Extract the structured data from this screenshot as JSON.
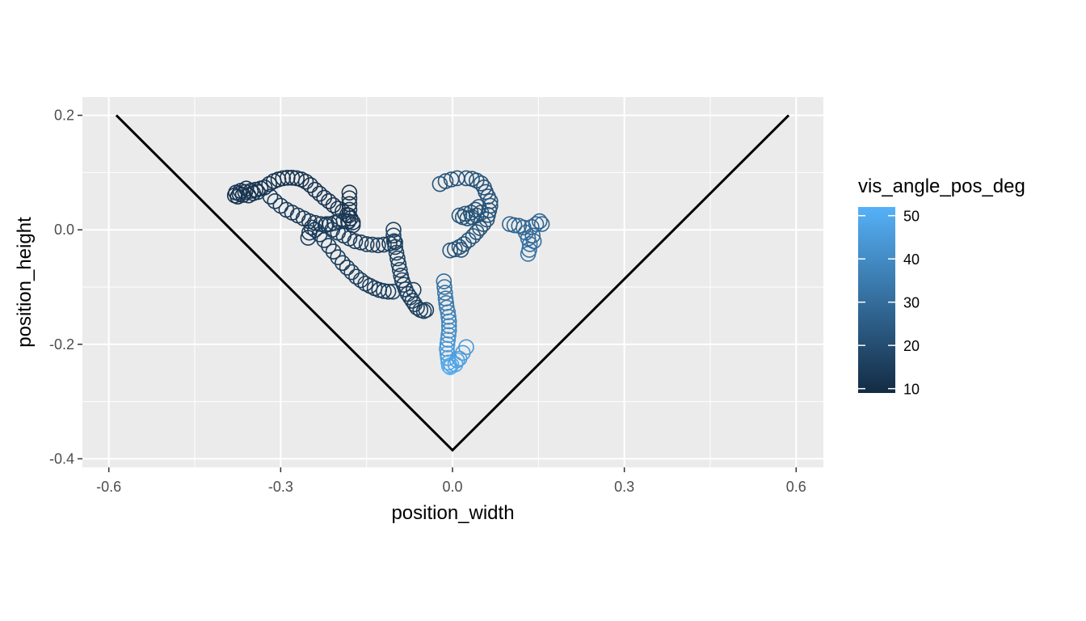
{
  "chart_data": {
    "type": "scatter",
    "title": "",
    "xlabel": "position_width",
    "ylabel": "position_height",
    "xlim": [
      -0.6,
      0.6
    ],
    "ylim": [
      -0.4,
      0.2
    ],
    "x_ticks": [
      -0.6,
      -0.3,
      0.0,
      0.3,
      0.6
    ],
    "x_tick_labels": [
      "-0.6",
      "-0.3",
      "0.0",
      "0.3",
      "0.6"
    ],
    "y_ticks": [
      -0.4,
      -0.2,
      0.0,
      0.2
    ],
    "y_tick_labels": [
      "-0.4",
      "-0.2",
      "0.0",
      "0.2"
    ],
    "grid": true,
    "background": "#ebebeb",
    "legend": {
      "title": "vis_angle_pos_deg",
      "placement": "right",
      "type": "colorbar",
      "min": 9,
      "max": 52,
      "ticks": [
        10,
        20,
        30,
        40,
        50
      ],
      "tick_labels": [
        "10",
        "20",
        "30",
        "40",
        "50"
      ],
      "color_low": "#132b43",
      "color_high": "#56b1f7"
    },
    "boundary_line": {
      "color": "#000000",
      "points": [
        [
          -0.587,
          0.2
        ],
        [
          0.0,
          -0.385
        ],
        [
          0.587,
          0.2
        ]
      ]
    },
    "points": [
      [
        -0.38,
        0.06,
        12
      ],
      [
        -0.378,
        0.065,
        12
      ],
      [
        -0.375,
        0.058,
        12
      ],
      [
        -0.372,
        0.063,
        12
      ],
      [
        -0.37,
        0.068,
        12
      ],
      [
        -0.366,
        0.061,
        12
      ],
      [
        -0.362,
        0.066,
        12
      ],
      [
        -0.36,
        0.072,
        12
      ],
      [
        -0.356,
        0.06,
        12
      ],
      [
        -0.352,
        0.068,
        12
      ],
      [
        -0.348,
        0.064,
        12
      ],
      [
        -0.344,
        0.07,
        12
      ],
      [
        -0.34,
        0.066,
        12
      ],
      [
        -0.335,
        0.072,
        12
      ],
      [
        -0.328,
        0.074,
        12
      ],
      [
        -0.32,
        0.08,
        12
      ],
      [
        -0.312,
        0.085,
        12
      ],
      [
        -0.304,
        0.088,
        12
      ],
      [
        -0.296,
        0.09,
        12
      ],
      [
        -0.288,
        0.091,
        12
      ],
      [
        -0.28,
        0.091,
        12
      ],
      [
        -0.272,
        0.09,
        12
      ],
      [
        -0.264,
        0.088,
        12
      ],
      [
        -0.256,
        0.084,
        12
      ],
      [
        -0.248,
        0.078,
        12
      ],
      [
        -0.24,
        0.07,
        12
      ],
      [
        -0.232,
        0.063,
        12
      ],
      [
        -0.224,
        0.056,
        12
      ],
      [
        -0.216,
        0.05,
        12
      ],
      [
        -0.208,
        0.043,
        12
      ],
      [
        -0.2,
        0.037,
        12
      ],
      [
        -0.192,
        0.032,
        12
      ],
      [
        -0.184,
        0.026,
        12
      ],
      [
        -0.178,
        0.02,
        12
      ],
      [
        -0.174,
        0.013,
        12
      ],
      [
        -0.18,
        0.065,
        12
      ],
      [
        -0.18,
        0.055,
        12
      ],
      [
        -0.18,
        0.045,
        12
      ],
      [
        -0.18,
        0.035,
        12
      ],
      [
        -0.181,
        0.025,
        12
      ],
      [
        -0.182,
        0.015,
        12
      ],
      [
        -0.318,
        0.058,
        14
      ],
      [
        -0.31,
        0.05,
        14
      ],
      [
        -0.3,
        0.042,
        14
      ],
      [
        -0.29,
        0.035,
        14
      ],
      [
        -0.28,
        0.03,
        14
      ],
      [
        -0.27,
        0.025,
        14
      ],
      [
        -0.26,
        0.02,
        14
      ],
      [
        -0.25,
        0.015,
        14
      ],
      [
        -0.24,
        0.012,
        14
      ],
      [
        -0.23,
        0.01,
        14
      ],
      [
        -0.222,
        0.008,
        14
      ],
      [
        -0.214,
        0.01,
        14
      ],
      [
        -0.206,
        0.012,
        14
      ],
      [
        -0.198,
        0.015,
        14
      ],
      [
        -0.19,
        0.016,
        14
      ],
      [
        -0.182,
        0.014,
        14
      ],
      [
        -0.174,
        0.008,
        14
      ],
      [
        -0.252,
        -0.014,
        14
      ],
      [
        -0.25,
        -0.005,
        14
      ],
      [
        -0.246,
        0.004,
        14
      ],
      [
        -0.24,
        0.0,
        15
      ],
      [
        -0.232,
        -0.008,
        15
      ],
      [
        -0.224,
        -0.018,
        15
      ],
      [
        -0.216,
        -0.028,
        15
      ],
      [
        -0.208,
        -0.038,
        15
      ],
      [
        -0.2,
        -0.048,
        15
      ],
      [
        -0.192,
        -0.058,
        15
      ],
      [
        -0.184,
        -0.066,
        15
      ],
      [
        -0.176,
        -0.074,
        15
      ],
      [
        -0.168,
        -0.082,
        15
      ],
      [
        -0.16,
        -0.088,
        15
      ],
      [
        -0.152,
        -0.094,
        15
      ],
      [
        -0.144,
        -0.098,
        15
      ],
      [
        -0.136,
        -0.102,
        15
      ],
      [
        -0.128,
        -0.105,
        15
      ],
      [
        -0.12,
        -0.107,
        15
      ],
      [
        -0.112,
        -0.108,
        15
      ],
      [
        -0.104,
        -0.108,
        15
      ],
      [
        -0.22,
        0.01,
        15
      ],
      [
        -0.21,
        0.0,
        15
      ],
      [
        -0.2,
        -0.005,
        15
      ],
      [
        -0.19,
        -0.01,
        15
      ],
      [
        -0.18,
        -0.015,
        15
      ],
      [
        -0.17,
        -0.02,
        15
      ],
      [
        -0.16,
        -0.022,
        15
      ],
      [
        -0.15,
        -0.025,
        15
      ],
      [
        -0.14,
        -0.026,
        15
      ],
      [
        -0.13,
        -0.027,
        15
      ],
      [
        -0.12,
        -0.026,
        15
      ],
      [
        -0.11,
        -0.024,
        15
      ],
      [
        -0.1,
        -0.022,
        15
      ],
      [
        -0.103,
        0.0,
        16
      ],
      [
        -0.103,
        -0.01,
        16
      ],
      [
        -0.102,
        -0.02,
        16
      ],
      [
        -0.1,
        -0.03,
        16
      ],
      [
        -0.098,
        -0.04,
        16
      ],
      [
        -0.096,
        -0.05,
        16
      ],
      [
        -0.094,
        -0.06,
        16
      ],
      [
        -0.092,
        -0.07,
        16
      ],
      [
        -0.09,
        -0.08,
        16
      ],
      [
        -0.088,
        -0.088,
        16
      ],
      [
        -0.085,
        -0.096,
        16
      ],
      [
        -0.082,
        -0.104,
        16
      ],
      [
        -0.078,
        -0.112,
        16
      ],
      [
        -0.074,
        -0.118,
        16
      ],
      [
        -0.07,
        -0.124,
        16
      ],
      [
        -0.066,
        -0.13,
        16
      ],
      [
        -0.062,
        -0.136,
        16
      ],
      [
        -0.056,
        -0.14,
        16
      ],
      [
        -0.05,
        -0.142,
        16
      ],
      [
        -0.046,
        -0.14,
        16
      ],
      [
        -0.068,
        -0.105,
        16
      ],
      [
        -0.015,
        -0.09,
        30
      ],
      [
        -0.014,
        -0.1,
        31
      ],
      [
        -0.013,
        -0.11,
        32
      ],
      [
        -0.012,
        -0.12,
        33
      ],
      [
        -0.011,
        -0.128,
        34
      ],
      [
        -0.01,
        -0.136,
        35
      ],
      [
        -0.008,
        -0.144,
        36
      ],
      [
        -0.007,
        -0.152,
        37
      ],
      [
        -0.006,
        -0.16,
        38
      ],
      [
        -0.006,
        -0.168,
        39
      ],
      [
        -0.006,
        -0.176,
        40
      ],
      [
        -0.007,
        -0.184,
        41
      ],
      [
        -0.008,
        -0.192,
        42
      ],
      [
        -0.009,
        -0.2,
        43
      ],
      [
        -0.01,
        -0.208,
        44
      ],
      [
        -0.009,
        -0.216,
        45
      ],
      [
        -0.008,
        -0.224,
        46
      ],
      [
        -0.007,
        -0.232,
        48
      ],
      [
        -0.006,
        -0.238,
        50
      ],
      [
        -0.004,
        -0.24,
        51
      ],
      [
        0.005,
        -0.235,
        48
      ],
      [
        0.012,
        -0.225,
        46
      ],
      [
        0.018,
        -0.215,
        45
      ],
      [
        0.024,
        -0.205,
        44
      ],
      [
        0.008,
        -0.228,
        47
      ],
      [
        -0.002,
        -0.236,
        49
      ],
      [
        -0.022,
        0.08,
        22
      ],
      [
        -0.012,
        0.085,
        22
      ],
      [
        -0.002,
        0.088,
        22
      ],
      [
        0.008,
        0.09,
        22
      ],
      [
        0.024,
        0.09,
        22
      ],
      [
        0.034,
        0.089,
        22
      ],
      [
        0.042,
        0.086,
        22
      ],
      [
        0.05,
        0.081,
        22
      ],
      [
        0.055,
        0.074,
        22
      ],
      [
        0.058,
        0.066,
        22
      ],
      [
        0.062,
        0.058,
        22
      ],
      [
        0.066,
        0.05,
        22
      ],
      [
        0.066,
        0.042,
        22
      ],
      [
        0.064,
        0.034,
        22
      ],
      [
        0.062,
        0.026,
        22
      ],
      [
        0.06,
        0.018,
        22
      ],
      [
        0.054,
        0.01,
        22
      ],
      [
        0.048,
        0.003,
        22
      ],
      [
        0.042,
        -0.004,
        22
      ],
      [
        0.036,
        -0.011,
        22
      ],
      [
        0.028,
        -0.018,
        22
      ],
      [
        0.02,
        -0.025,
        22
      ],
      [
        0.012,
        -0.03,
        22
      ],
      [
        0.004,
        -0.034,
        22
      ],
      [
        -0.004,
        -0.036,
        22
      ],
      [
        0.015,
        -0.035,
        22
      ],
      [
        0.012,
        0.025,
        22
      ],
      [
        0.022,
        0.028,
        22
      ],
      [
        0.032,
        0.03,
        22
      ],
      [
        0.04,
        0.035,
        22
      ],
      [
        0.046,
        0.04,
        22
      ],
      [
        0.05,
        0.03,
        22
      ],
      [
        0.042,
        0.025,
        22
      ],
      [
        0.034,
        0.022,
        22
      ],
      [
        0.026,
        0.02,
        22
      ],
      [
        0.018,
        0.022,
        22
      ],
      [
        0.1,
        0.01,
        27
      ],
      [
        0.108,
        0.008,
        27
      ],
      [
        0.116,
        0.007,
        27
      ],
      [
        0.124,
        0.004,
        28
      ],
      [
        0.128,
        -0.005,
        29
      ],
      [
        0.132,
        -0.015,
        30
      ],
      [
        0.135,
        -0.025,
        31
      ],
      [
        0.134,
        -0.035,
        32
      ],
      [
        0.132,
        -0.042,
        33
      ],
      [
        0.138,
        0.005,
        28
      ],
      [
        0.146,
        0.01,
        28
      ],
      [
        0.152,
        0.015,
        28
      ],
      [
        0.156,
        0.01,
        28
      ],
      [
        0.14,
        -0.01,
        29
      ],
      [
        0.142,
        -0.02,
        30
      ]
    ]
  }
}
